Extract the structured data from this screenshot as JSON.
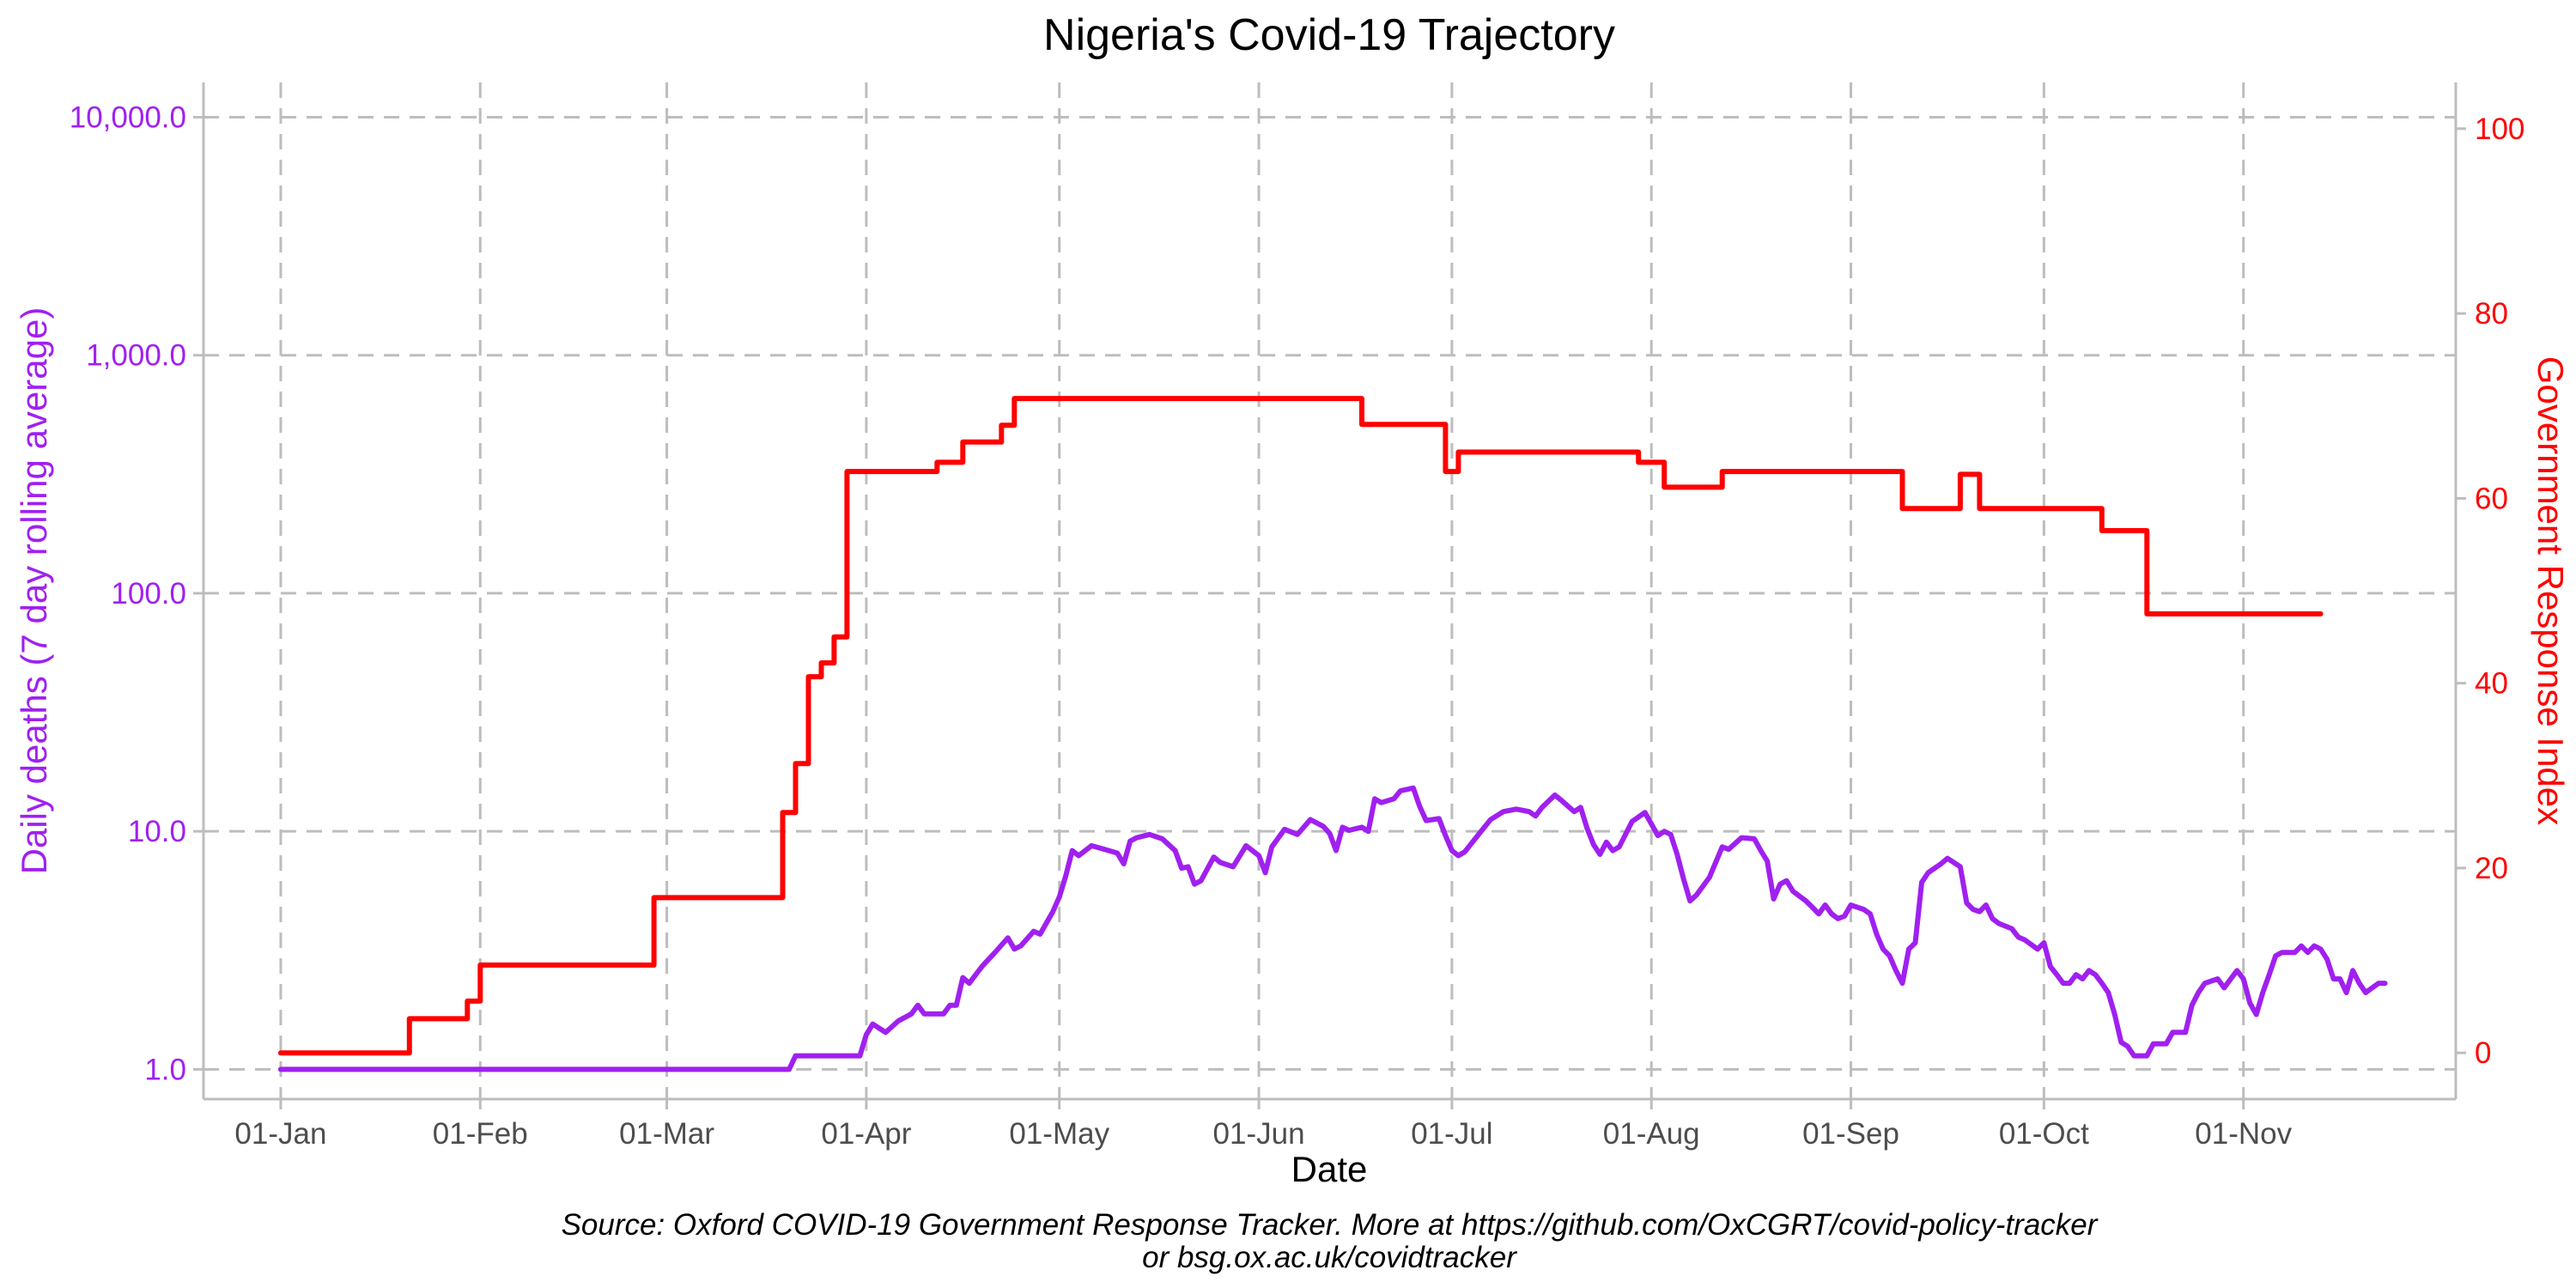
{
  "chart_data": {
    "type": "line",
    "title": "Nigeria's Covid-19 Trajectory",
    "xlabel": "Date",
    "ylabel_left": "Daily deaths (7 day rolling average)",
    "ylabel_right": "Government Response Index",
    "caption_line1": "Source: Oxford COVID-19 Government Response Tracker. More at https://github.com/OxCGRT/covid-policy-tracker",
    "caption_line2": "or bsg.ox.ac.uk/covidtracker",
    "x_ticks": [
      "01-Jan",
      "01-Feb",
      "01-Mar",
      "01-Apr",
      "01-May",
      "01-Jun",
      "01-Jul",
      "01-Aug",
      "01-Sep",
      "01-Oct",
      "01-Nov"
    ],
    "y_left_scale": "log10",
    "y_left_ticks": [
      "1.0",
      "10.0",
      "100.0",
      "1,000.0",
      "10,000.0"
    ],
    "y_left_range": [
      0.75,
      14000
    ],
    "y_right_ticks": [
      "0",
      "20",
      "40",
      "60",
      "80",
      "100"
    ],
    "y_right_range": [
      -5,
      105
    ],
    "grid": true,
    "colors": {
      "deaths": "#a020f0",
      "response": "#ff0000",
      "title": "#000000"
    },
    "series": [
      {
        "axis": "right",
        "color": "#ff0000",
        "step": true,
        "points": [
          [
            "2020-01-01",
            0
          ],
          [
            "2020-01-21",
            3.7
          ],
          [
            "2020-01-30",
            5.6
          ],
          [
            "2020-02-01",
            9.5
          ],
          [
            "2020-02-28",
            16.8
          ],
          [
            "2020-03-19",
            26
          ],
          [
            "2020-03-21",
            31.3
          ],
          [
            "2020-03-23",
            40.7
          ],
          [
            "2020-03-25",
            42.2
          ],
          [
            "2020-03-27",
            45
          ],
          [
            "2020-03-29",
            62.9
          ],
          [
            "2020-04-12",
            63.9
          ],
          [
            "2020-04-16",
            66.1
          ],
          [
            "2020-04-22",
            67.9
          ],
          [
            "2020-04-24",
            70.8
          ],
          [
            "2020-06-17",
            68
          ],
          [
            "2020-06-30",
            62.9
          ],
          [
            "2020-07-02",
            65
          ],
          [
            "2020-07-30",
            63.9
          ],
          [
            "2020-08-03",
            61.2
          ],
          [
            "2020-08-12",
            62.9
          ],
          [
            "2020-09-09",
            58.9
          ],
          [
            "2020-09-18",
            62.6
          ],
          [
            "2020-09-21",
            58.9
          ],
          [
            "2020-10-10",
            56.5
          ],
          [
            "2020-10-17",
            47.5
          ],
          [
            "2020-11-13",
            47.5
          ]
        ]
      },
      {
        "axis": "left",
        "color": "#a020f0",
        "step": false,
        "points": [
          [
            "2020-01-01",
            1
          ],
          [
            "2020-03-20",
            1
          ],
          [
            "2020-03-21",
            1.14
          ],
          [
            "2020-03-31",
            1.14
          ],
          [
            "2020-04-01",
            1.4
          ],
          [
            "2020-04-02",
            1.55
          ],
          [
            "2020-04-04",
            1.43
          ],
          [
            "2020-04-06",
            1.6
          ],
          [
            "2020-04-08",
            1.71
          ],
          [
            "2020-04-09",
            1.86
          ],
          [
            "2020-04-10",
            1.71
          ],
          [
            "2020-04-13",
            1.71
          ],
          [
            "2020-04-14",
            1.86
          ],
          [
            "2020-04-15",
            1.86
          ],
          [
            "2020-04-16",
            2.43
          ],
          [
            "2020-04-17",
            2.3
          ],
          [
            "2020-04-19",
            2.71
          ],
          [
            "2020-04-21",
            3.1
          ],
          [
            "2020-04-23",
            3.57
          ],
          [
            "2020-04-24",
            3.2
          ],
          [
            "2020-04-25",
            3.3
          ],
          [
            "2020-04-27",
            3.8
          ],
          [
            "2020-04-28",
            3.7
          ],
          [
            "2020-04-30",
            4.6
          ],
          [
            "2020-05-01",
            5.3
          ],
          [
            "2020-05-02",
            6.5
          ],
          [
            "2020-05-03",
            8.3
          ],
          [
            "2020-05-04",
            7.9
          ],
          [
            "2020-05-06",
            8.7
          ],
          [
            "2020-05-08",
            8.4
          ],
          [
            "2020-05-10",
            8.1
          ],
          [
            "2020-05-11",
            7.3
          ],
          [
            "2020-05-12",
            9.1
          ],
          [
            "2020-05-13",
            9.4
          ],
          [
            "2020-05-15",
            9.7
          ],
          [
            "2020-05-17",
            9.3
          ],
          [
            "2020-05-19",
            8.3
          ],
          [
            "2020-05-20",
            7.0
          ],
          [
            "2020-05-21",
            7.1
          ],
          [
            "2020-05-22",
            6.0
          ],
          [
            "2020-05-23",
            6.2
          ],
          [
            "2020-05-25",
            7.8
          ],
          [
            "2020-05-26",
            7.4
          ],
          [
            "2020-05-28",
            7.1
          ],
          [
            "2020-05-30",
            8.7
          ],
          [
            "2020-05-31",
            8.3
          ],
          [
            "2020-06-01",
            7.9
          ],
          [
            "2020-06-02",
            6.7
          ],
          [
            "2020-06-03",
            8.6
          ],
          [
            "2020-06-05",
            10.2
          ],
          [
            "2020-06-07",
            9.7
          ],
          [
            "2020-06-09",
            11.2
          ],
          [
            "2020-06-11",
            10.5
          ],
          [
            "2020-06-12",
            9.8
          ],
          [
            "2020-06-13",
            8.3
          ],
          [
            "2020-06-14",
            10.4
          ],
          [
            "2020-06-15",
            10.1
          ],
          [
            "2020-06-17",
            10.4
          ],
          [
            "2020-06-18",
            10.0
          ],
          [
            "2020-06-19",
            13.7
          ],
          [
            "2020-06-20",
            13.2
          ],
          [
            "2020-06-22",
            13.7
          ],
          [
            "2020-06-23",
            14.8
          ],
          [
            "2020-06-25",
            15.2
          ],
          [
            "2020-06-26",
            12.7
          ],
          [
            "2020-06-27",
            11.1
          ],
          [
            "2020-06-29",
            11.3
          ],
          [
            "2020-06-30",
            9.6
          ],
          [
            "2020-07-01",
            8.3
          ],
          [
            "2020-07-02",
            7.9
          ],
          [
            "2020-07-03",
            8.2
          ],
          [
            "2020-07-05",
            9.6
          ],
          [
            "2020-07-07",
            11.2
          ],
          [
            "2020-07-09",
            12.1
          ],
          [
            "2020-07-11",
            12.4
          ],
          [
            "2020-07-13",
            12.1
          ],
          [
            "2020-07-14",
            11.6
          ],
          [
            "2020-07-15",
            12.6
          ],
          [
            "2020-07-17",
            14.2
          ],
          [
            "2020-07-18",
            13.5
          ],
          [
            "2020-07-20",
            12.1
          ],
          [
            "2020-07-21",
            12.6
          ],
          [
            "2020-07-22",
            10.3
          ],
          [
            "2020-07-23",
            8.8
          ],
          [
            "2020-07-24",
            8.0
          ],
          [
            "2020-07-25",
            9.0
          ],
          [
            "2020-07-26",
            8.3
          ],
          [
            "2020-07-27",
            8.6
          ],
          [
            "2020-07-29",
            11.0
          ],
          [
            "2020-07-31",
            12.0
          ],
          [
            "2020-08-02",
            9.6
          ],
          [
            "2020-08-03",
            10.0
          ],
          [
            "2020-08-04",
            9.7
          ],
          [
            "2020-08-05",
            8.0
          ],
          [
            "2020-08-06",
            6.3
          ],
          [
            "2020-08-07",
            5.1
          ],
          [
            "2020-08-08",
            5.4
          ],
          [
            "2020-08-10",
            6.4
          ],
          [
            "2020-08-12",
            8.6
          ],
          [
            "2020-08-13",
            8.4
          ],
          [
            "2020-08-15",
            9.4
          ],
          [
            "2020-08-17",
            9.3
          ],
          [
            "2020-08-18",
            8.3
          ],
          [
            "2020-08-19",
            7.5
          ],
          [
            "2020-08-20",
            5.2
          ],
          [
            "2020-08-21",
            6.0
          ],
          [
            "2020-08-22",
            6.2
          ],
          [
            "2020-08-23",
            5.6
          ],
          [
            "2020-08-25",
            5.1
          ],
          [
            "2020-08-26",
            4.8
          ],
          [
            "2020-08-27",
            4.5
          ],
          [
            "2020-08-28",
            4.9
          ],
          [
            "2020-08-29",
            4.5
          ],
          [
            "2020-08-30",
            4.3
          ],
          [
            "2020-08-31",
            4.4
          ],
          [
            "2020-09-01",
            4.9
          ],
          [
            "2020-09-03",
            4.7
          ],
          [
            "2020-09-04",
            4.5
          ],
          [
            "2020-09-05",
            3.7
          ],
          [
            "2020-09-06",
            3.2
          ],
          [
            "2020-09-07",
            3.0
          ],
          [
            "2020-09-08",
            2.6
          ],
          [
            "2020-09-09",
            2.3
          ],
          [
            "2020-09-10",
            3.2
          ],
          [
            "2020-09-11",
            3.4
          ],
          [
            "2020-09-12",
            6.1
          ],
          [
            "2020-09-13",
            6.7
          ],
          [
            "2020-09-15",
            7.3
          ],
          [
            "2020-09-16",
            7.7
          ],
          [
            "2020-09-18",
            7.1
          ],
          [
            "2020-09-19",
            5.0
          ],
          [
            "2020-09-20",
            4.7
          ],
          [
            "2020-09-21",
            4.6
          ],
          [
            "2020-09-22",
            4.9
          ],
          [
            "2020-09-23",
            4.3
          ],
          [
            "2020-09-24",
            4.1
          ],
          [
            "2020-09-26",
            3.9
          ],
          [
            "2020-09-27",
            3.6
          ],
          [
            "2020-09-28",
            3.5
          ],
          [
            "2020-09-30",
            3.2
          ],
          [
            "2020-10-01",
            3.4
          ],
          [
            "2020-10-02",
            2.7
          ],
          [
            "2020-10-03",
            2.5
          ],
          [
            "2020-10-04",
            2.3
          ],
          [
            "2020-10-05",
            2.3
          ],
          [
            "2020-10-06",
            2.5
          ],
          [
            "2020-10-07",
            2.4
          ],
          [
            "2020-10-08",
            2.6
          ],
          [
            "2020-10-09",
            2.5
          ],
          [
            "2020-10-10",
            2.3
          ],
          [
            "2020-10-11",
            2.1
          ],
          [
            "2020-10-12",
            1.7
          ],
          [
            "2020-10-13",
            1.3
          ],
          [
            "2020-10-14",
            1.25
          ],
          [
            "2020-10-15",
            1.14
          ],
          [
            "2020-10-17",
            1.14
          ],
          [
            "2020-10-18",
            1.28
          ],
          [
            "2020-10-20",
            1.28
          ],
          [
            "2020-10-21",
            1.43
          ],
          [
            "2020-10-23",
            1.43
          ],
          [
            "2020-10-24",
            1.86
          ],
          [
            "2020-10-25",
            2.1
          ],
          [
            "2020-10-26",
            2.3
          ],
          [
            "2020-10-28",
            2.4
          ],
          [
            "2020-10-29",
            2.2
          ],
          [
            "2020-10-31",
            2.6
          ],
          [
            "2020-11-01",
            2.4
          ],
          [
            "2020-11-02",
            1.9
          ],
          [
            "2020-11-03",
            1.7
          ],
          [
            "2020-11-04",
            2.1
          ],
          [
            "2020-11-05",
            2.5
          ],
          [
            "2020-11-06",
            3.0
          ],
          [
            "2020-11-07",
            3.1
          ],
          [
            "2020-11-09",
            3.1
          ],
          [
            "2020-11-10",
            3.3
          ],
          [
            "2020-11-11",
            3.1
          ],
          [
            "2020-11-12",
            3.3
          ],
          [
            "2020-11-13",
            3.2
          ],
          [
            "2020-11-14",
            2.9
          ],
          [
            "2020-11-15",
            2.4
          ],
          [
            "2020-11-16",
            2.4
          ],
          [
            "2020-11-17",
            2.1
          ],
          [
            "2020-11-18",
            2.6
          ],
          [
            "2020-11-19",
            2.3
          ],
          [
            "2020-11-20",
            2.1
          ],
          [
            "2020-11-21",
            2.2
          ],
          [
            "2020-11-22",
            2.3
          ],
          [
            "2020-11-23",
            2.3
          ]
        ]
      }
    ]
  }
}
